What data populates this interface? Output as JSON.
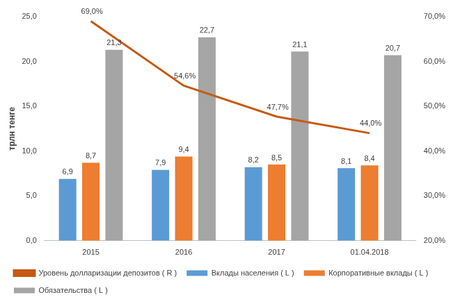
{
  "chart_data": {
    "type": "bar",
    "ylabel": "трлн тенге",
    "categories": [
      "2015",
      "2016",
      "2017",
      "01.04.2018"
    ],
    "series": [
      {
        "name": "Вклады населения ( L )",
        "type": "bar",
        "axis": "y",
        "color": "#5b9bd5",
        "values": [
          6.9,
          7.9,
          8.2,
          8.1
        ],
        "value_labels": [
          "6,9",
          "7,9",
          "8,2",
          "8,1"
        ]
      },
      {
        "name": "Корпоративные вклады ( L )",
        "type": "bar",
        "axis": "y",
        "color": "#ed7d31",
        "values": [
          8.7,
          9.4,
          8.5,
          8.4
        ],
        "value_labels": [
          "8,7",
          "9,4",
          "8,5",
          "8,4"
        ]
      },
      {
        "name": "Обязательства ( L )",
        "type": "bar",
        "axis": "y",
        "color": "#a5a5a5",
        "values": [
          21.3,
          22.7,
          21.1,
          20.7
        ],
        "value_labels": [
          "21,3",
          "22,7",
          "21,1",
          "20,7"
        ]
      },
      {
        "name": "Уровень долларизации депозитов ( R )",
        "type": "line",
        "axis": "y2",
        "color": "#c55a11",
        "marker": "none",
        "line_style": "solid",
        "values": [
          69.0,
          54.6,
          47.7,
          44.0
        ],
        "value_labels": [
          "69,0%",
          "54,6%",
          "47,7%",
          "44,0%"
        ]
      }
    ],
    "ylim": [
      0,
      25
    ],
    "yticks": [
      {
        "value": 0,
        "label": "0,0"
      },
      {
        "value": 5,
        "label": "5,0"
      },
      {
        "value": 10,
        "label": "10,0"
      },
      {
        "value": 15,
        "label": "15,0"
      },
      {
        "value": 20,
        "label": "20,0"
      },
      {
        "value": 25,
        "label": "25,0"
      }
    ],
    "y2lim": [
      20,
      70
    ],
    "y2ticks": [
      {
        "value": 20,
        "label": "20,0%"
      },
      {
        "value": 30,
        "label": "30,0%"
      },
      {
        "value": 40,
        "label": "40,0%"
      },
      {
        "value": 50,
        "label": "50,0%"
      },
      {
        "value": 60,
        "label": "60,0%"
      },
      {
        "value": 70,
        "label": "70,0%"
      }
    ],
    "grid": false,
    "legend": "bottom",
    "data_labels": true
  }
}
